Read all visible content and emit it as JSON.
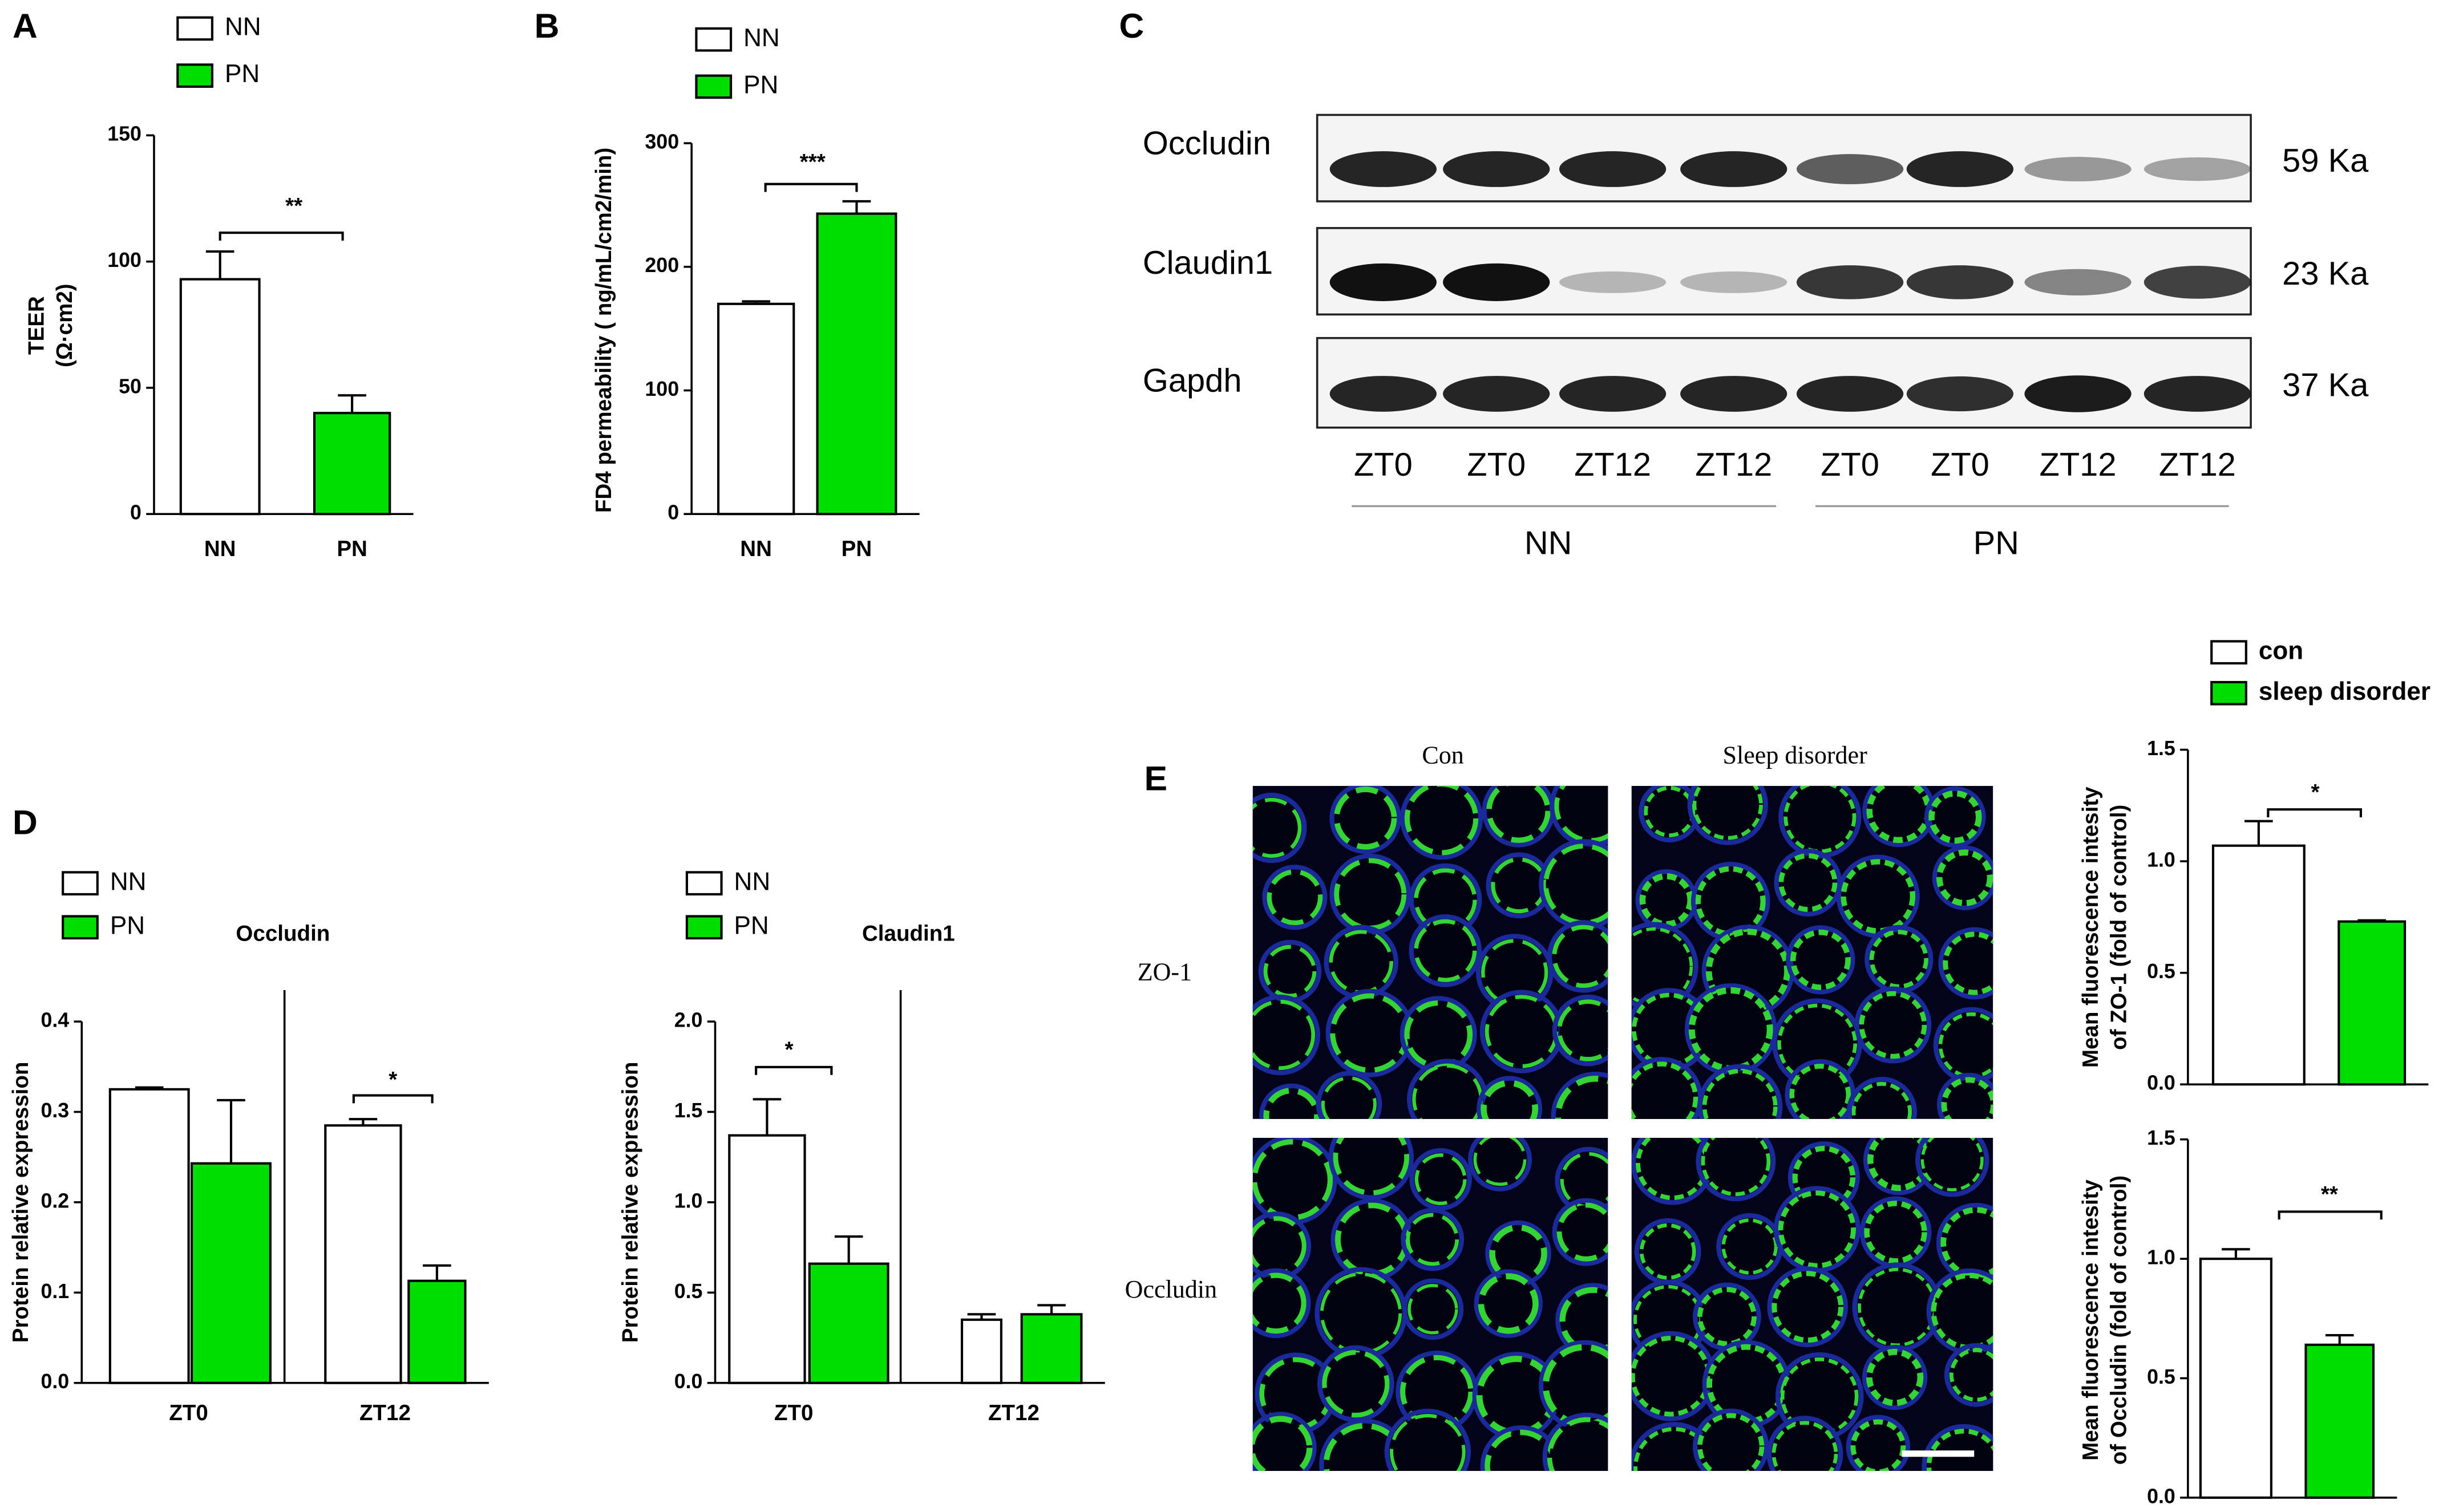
{
  "chart_data": [
    {
      "type": "bar",
      "panel": "A",
      "ylabel": [
        "TEER",
        "(Ω·cm2)"
      ],
      "categories": [
        "NN",
        "PN"
      ],
      "series": [
        {
          "name": "NN",
          "color": "#ffffff",
          "values": [
            93,
            null
          ],
          "errors": [
            11,
            null
          ]
        },
        {
          "name": "PN",
          "color": "#00dd00",
          "values": [
            null,
            40
          ],
          "errors": [
            null,
            7
          ]
        }
      ],
      "ylim": [
        0,
        150
      ],
      "yticks": [
        0,
        50,
        100,
        150
      ],
      "annotation": "**"
    },
    {
      "type": "bar",
      "panel": "B",
      "ylabel": [
        "FD4 permeability ( ng/mL/cm2/min)"
      ],
      "categories": [
        "NN",
        "PN"
      ],
      "series": [
        {
          "name": "NN",
          "color": "#ffffff",
          "values": [
            170,
            null
          ],
          "errors": [
            2,
            null
          ]
        },
        {
          "name": "PN",
          "color": "#00dd00",
          "values": [
            null,
            243
          ],
          "errors": [
            null,
            10
          ]
        }
      ],
      "ylim": [
        0,
        300
      ],
      "yticks": [
        0,
        100,
        200,
        300
      ],
      "annotation": "***"
    },
    {
      "type": "bar",
      "panel": "D",
      "title": "Occludin",
      "ylabel": [
        "Protein relative expression"
      ],
      "categories": [
        "ZT0",
        "ZT12"
      ],
      "series": [
        {
          "name": "NN",
          "color": "#ffffff",
          "values": [
            0.325,
            0.285
          ],
          "errors": [
            0.002,
            0.007
          ]
        },
        {
          "name": "PN",
          "color": "#00dd00",
          "values": [
            0.243,
            0.113
          ],
          "errors": [
            0.07,
            0.017
          ]
        }
      ],
      "ylim": [
        0,
        0.4
      ],
      "yticks": [
        {
          "value": 0,
          "label": "0.0"
        },
        0.1,
        0.2,
        0.3,
        0.4
      ],
      "annotation": "*"
    },
    {
      "type": "bar",
      "title": "Claudin1",
      "ylabel": [
        "Protein relative expression"
      ],
      "categories": [
        "ZT0",
        "ZT12"
      ],
      "series": [
        {
          "name": "NN",
          "color": "#ffffff",
          "values": [
            1.37,
            0.35
          ],
          "errors": [
            0.2,
            0.03
          ]
        },
        {
          "name": "PN",
          "color": "#00dd00",
          "values": [
            0.66,
            0.38
          ],
          "errors": [
            0.15,
            0.05
          ]
        }
      ],
      "ylim": [
        0,
        2
      ],
      "yticks": [
        {
          "value": 0,
          "label": "0.0"
        },
        0.5,
        {
          "value": 1,
          "label": "1.0"
        },
        1.5,
        {
          "value": 2,
          "label": "2.0"
        }
      ],
      "annotation": "*"
    },
    {
      "type": "bar",
      "ylabel": [
        "Mean fluorescence intesity",
        "of ZO-1  (fold of control)"
      ],
      "series": [
        {
          "name": "con",
          "color": "#ffffff",
          "values": [
            1.07,
            null
          ],
          "errors": [
            0.11,
            null
          ]
        },
        {
          "name": "sleep disorder",
          "color": "#00dd00",
          "values": [
            null,
            0.73
          ],
          "errors": [
            null,
            0.005
          ]
        }
      ],
      "ylim": [
        0,
        1.5
      ],
      "yticks": [
        {
          "value": 0,
          "label": "0.0"
        },
        0.5,
        {
          "value": 1,
          "label": "1.0"
        },
        1.5
      ],
      "annotation": "*"
    },
    {
      "type": "bar",
      "ylabel": [
        "Mean fluorescence intesity",
        "of Occludin (fold of control)"
      ],
      "series": [
        {
          "color": "#ffffff",
          "values": [
            1.0,
            null
          ],
          "errors": [
            0.04,
            null
          ]
        },
        {
          "color": "#00dd00",
          "values": [
            null,
            0.64
          ],
          "errors": [
            null,
            0.04
          ]
        }
      ],
      "ylim": [
        0,
        1.5
      ],
      "yticks": [
        {
          "value": 0,
          "label": "0.0"
        },
        0.5,
        {
          "value": 1,
          "label": "1.0"
        },
        1.5
      ],
      "annotation": "**"
    }
  ],
  "blot": {
    "panel": "C",
    "proteins": [
      {
        "name": "Occludin",
        "size": "59 Ka"
      },
      {
        "name": "Claudin1",
        "size": "23 Ka"
      },
      {
        "name": "Gapdh",
        "size": "37 Ka"
      }
    ],
    "lanes": [
      "ZT0",
      "ZT0",
      "ZT12",
      "ZT12",
      "ZT0",
      "ZT0",
      "ZT12",
      "ZT12"
    ],
    "groups": [
      "NN",
      "PN"
    ]
  },
  "images": {
    "panel": "E",
    "columns": [
      "Con",
      "Sleep disorder"
    ],
    "rows": [
      "ZO-1",
      "Occludin"
    ]
  }
}
